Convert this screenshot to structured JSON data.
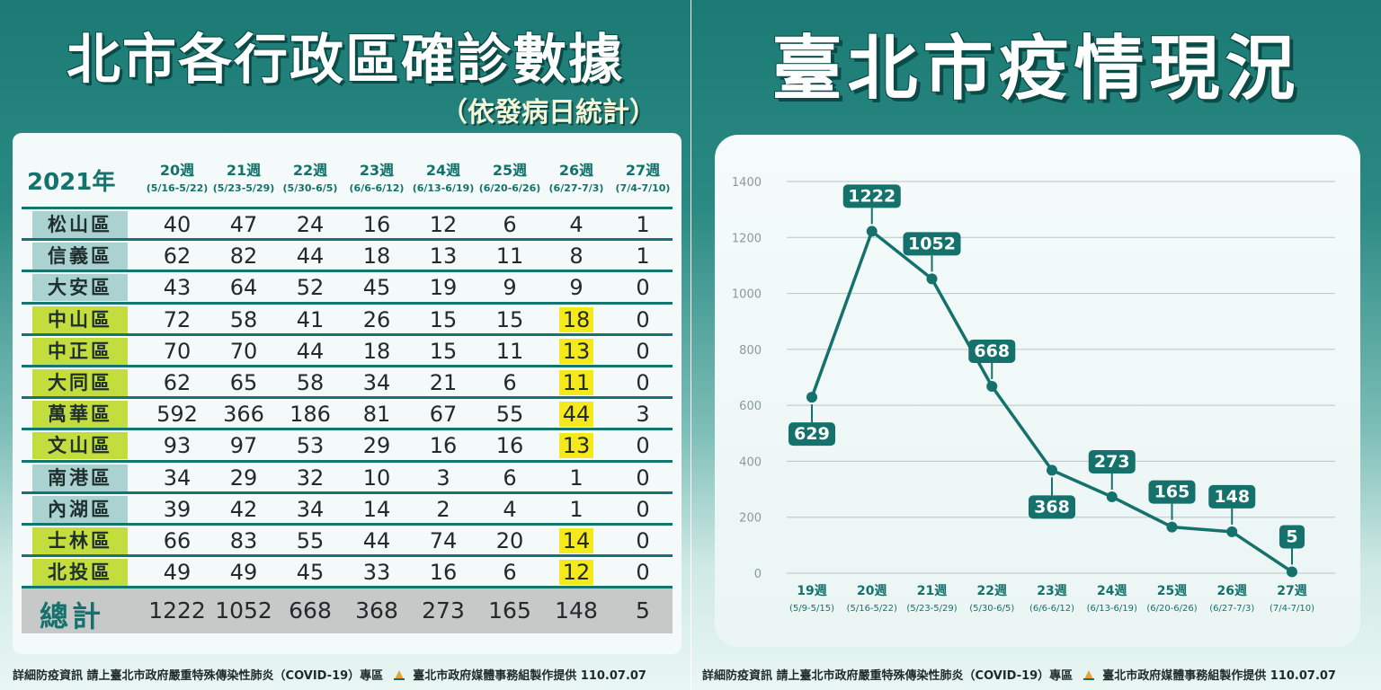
{
  "left": {
    "title": "北市各行政區確診數據",
    "subtitle": "（依發病日統計）",
    "year_label": "2021年",
    "weeks": [
      {
        "week": "20週",
        "range": "(5/16-5/22)"
      },
      {
        "week": "21週",
        "range": "(5/23-5/29)"
      },
      {
        "week": "22週",
        "range": "(5/30-6/5)"
      },
      {
        "week": "23週",
        "range": "(6/6-6/12)"
      },
      {
        "week": "24週",
        "range": "(6/13-6/19)"
      },
      {
        "week": "25週",
        "range": "(6/20-6/26)"
      },
      {
        "week": "26週",
        "range": "(6/27-7/3)"
      },
      {
        "week": "27週",
        "range": "(7/4-7/10)"
      }
    ],
    "rows": [
      {
        "district": "松山區",
        "highlight": false,
        "values": [
          "40",
          "47",
          "24",
          "16",
          "12",
          "6",
          "4",
          "1"
        ],
        "hl26": false
      },
      {
        "district": "信義區",
        "highlight": false,
        "values": [
          "62",
          "82",
          "44",
          "18",
          "13",
          "11",
          "8",
          "1"
        ],
        "hl26": false
      },
      {
        "district": "大安區",
        "highlight": false,
        "values": [
          "43",
          "64",
          "52",
          "45",
          "19",
          "9",
          "9",
          "0"
        ],
        "hl26": false
      },
      {
        "district": "中山區",
        "highlight": true,
        "values": [
          "72",
          "58",
          "41",
          "26",
          "15",
          "15",
          "18",
          "0"
        ],
        "hl26": true
      },
      {
        "district": "中正區",
        "highlight": true,
        "values": [
          "70",
          "70",
          "44",
          "18",
          "15",
          "11",
          "13",
          "0"
        ],
        "hl26": true
      },
      {
        "district": "大同區",
        "highlight": true,
        "values": [
          "62",
          "65",
          "58",
          "34",
          "21",
          "6",
          "11",
          "0"
        ],
        "hl26": true
      },
      {
        "district": "萬華區",
        "highlight": true,
        "values": [
          "592",
          "366",
          "186",
          "81",
          "67",
          "55",
          "44",
          "3"
        ],
        "hl26": true
      },
      {
        "district": "文山區",
        "highlight": true,
        "values": [
          "93",
          "97",
          "53",
          "29",
          "16",
          "16",
          "13",
          "0"
        ],
        "hl26": true
      },
      {
        "district": "南港區",
        "highlight": false,
        "values": [
          "34",
          "29",
          "32",
          "10",
          "3",
          "6",
          "1",
          "0"
        ],
        "hl26": false
      },
      {
        "district": "內湖區",
        "highlight": false,
        "values": [
          "39",
          "42",
          "34",
          "14",
          "2",
          "4",
          "1",
          "0"
        ],
        "hl26": false
      },
      {
        "district": "士林區",
        "highlight": true,
        "values": [
          "66",
          "83",
          "55",
          "44",
          "74",
          "20",
          "14",
          "0"
        ],
        "hl26": true
      },
      {
        "district": "北投區",
        "highlight": true,
        "values": [
          "49",
          "49",
          "45",
          "33",
          "16",
          "6",
          "12",
          "0"
        ],
        "hl26": true
      }
    ],
    "total": {
      "label": "總計",
      "values": [
        "1222",
        "1052",
        "668",
        "368",
        "273",
        "165",
        "148",
        "5"
      ]
    },
    "footer": "詳細防疫資訊 請上臺北市政府嚴重特殊傳染性肺炎（COVID-19）專區",
    "credit": "臺北市政府媒體事務組製作提供 110.07.07"
  },
  "right": {
    "title": "臺北市疫情現況",
    "footer": "詳細防疫資訊 請上臺北市政府嚴重特殊傳染性肺炎（COVID-19）專區",
    "credit": "臺北市政府媒體事務組製作提供 110.07.07"
  },
  "colors": {
    "teal": "#14716b",
    "highlight_yellow": "#f4ea1b",
    "highlight_green": "#c3dd3e"
  },
  "chart_data": {
    "type": "line",
    "categories": [
      "19週",
      "20週",
      "21週",
      "22週",
      "23週",
      "24週",
      "25週",
      "26週",
      "27週"
    ],
    "category_ranges": [
      "(5/9-5/15)",
      "(5/16-5/22)",
      "(5/23-5/29)",
      "(5/30-6/5)",
      "(6/6-6/12)",
      "(6/13-6/19)",
      "(6/20-6/26)",
      "(6/27-7/3)",
      "(7/4-7/10)"
    ],
    "values": [
      629,
      1222,
      1052,
      668,
      368,
      273,
      165,
      148,
      5
    ],
    "ylim": [
      0,
      1400
    ],
    "yticks": [
      "0",
      "200",
      "400",
      "600",
      "800",
      "1000",
      "1200",
      "1400"
    ],
    "grid": true,
    "line_color": "#14716b"
  }
}
